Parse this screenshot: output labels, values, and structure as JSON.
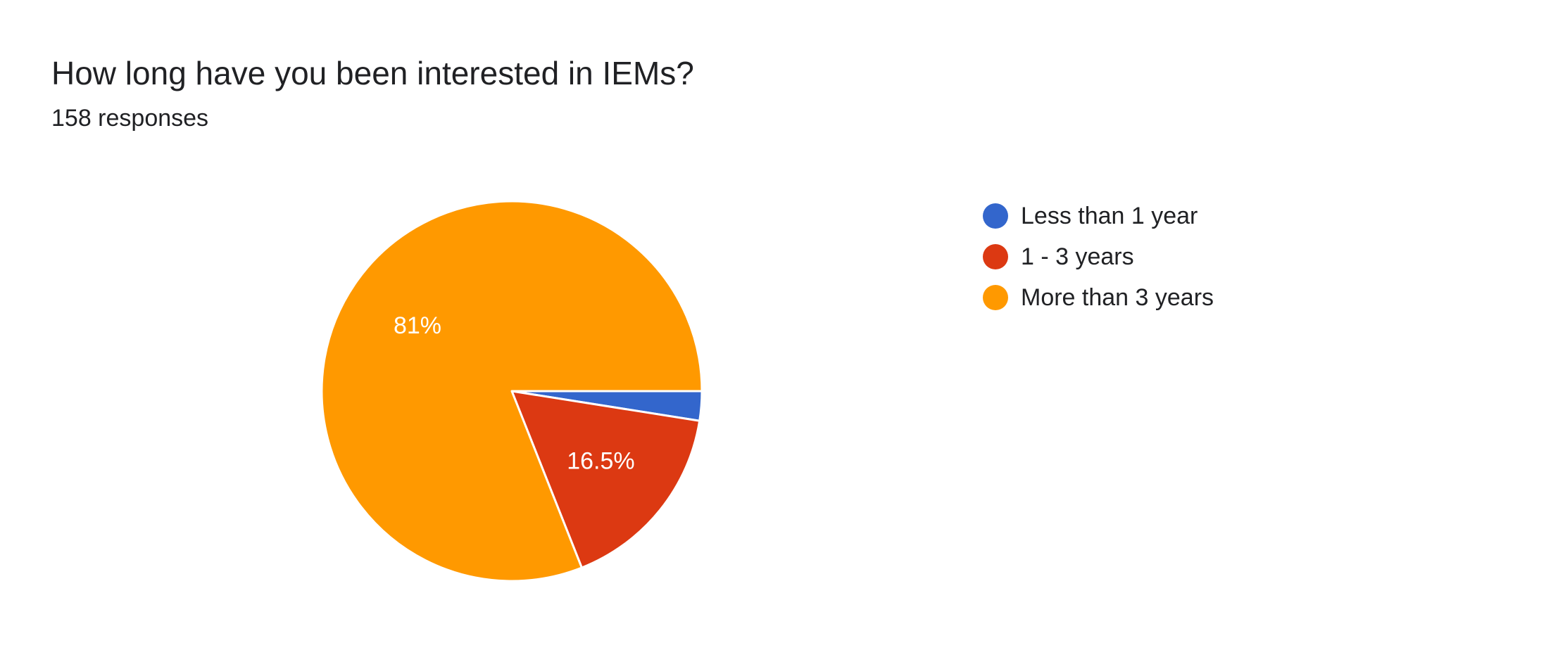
{
  "title": "How long have you been interested in IEMs?",
  "subtitle": "158 responses",
  "chart_data": {
    "type": "pie",
    "categories": [
      "Less than 1 year",
      "1 - 3 years",
      "More than 3 years"
    ],
    "values": [
      2.5,
      16.5,
      81
    ],
    "data_labels": [
      "",
      "16.5%",
      "81%"
    ],
    "colors": [
      "#3366cc",
      "#dc3912",
      "#ff9900"
    ],
    "legend_position": "right",
    "start_angle_deg": 90,
    "direction": "clockwise"
  },
  "legend": [
    {
      "label": "Less than 1 year",
      "color": "#3366cc"
    },
    {
      "label": "1 - 3 years",
      "color": "#dc3912"
    },
    {
      "label": "More than 3 years",
      "color": "#ff9900"
    }
  ]
}
